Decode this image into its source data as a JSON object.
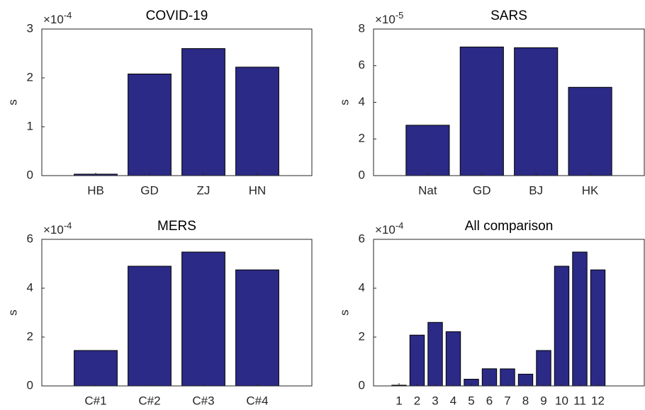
{
  "chart_data": [
    {
      "type": "bar",
      "title": "COVID-19",
      "ylabel": "s",
      "y_exponent": {
        "base": "×10",
        "power": "-4"
      },
      "categories": [
        "HB",
        "GD",
        "ZJ",
        "HN"
      ],
      "values": [
        0.03,
        2.08,
        2.6,
        2.22
      ],
      "color": "#2b2a86",
      "ylim": [
        0,
        3
      ],
      "yticks": [
        0,
        1,
        2,
        3
      ]
    },
    {
      "type": "bar",
      "title": "SARS",
      "ylabel": "s",
      "y_exponent": {
        "base": "×10",
        "power": "-5"
      },
      "categories": [
        "Nat",
        "GD",
        "BJ",
        "HK"
      ],
      "values": [
        2.75,
        7.02,
        6.98,
        4.82
      ],
      "color": "#2b2a86",
      "ylim": [
        0,
        8
      ],
      "yticks": [
        0,
        2,
        4,
        6,
        8
      ]
    },
    {
      "type": "bar",
      "title": "MERS",
      "ylabel": "s",
      "y_exponent": {
        "base": "×10",
        "power": "-4"
      },
      "categories": [
        "C#1",
        "C#2",
        "C#3",
        "C#4"
      ],
      "values": [
        1.45,
        4.9,
        5.48,
        4.75
      ],
      "color": "#2b2a86",
      "ylim": [
        0,
        6
      ],
      "yticks": [
        0,
        2,
        4,
        6
      ]
    },
    {
      "type": "bar",
      "title": "All comparison",
      "ylabel": "s",
      "y_exponent": {
        "base": "×10",
        "power": "-4"
      },
      "categories": [
        "1",
        "2",
        "3",
        "4",
        "5",
        "6",
        "7",
        "8",
        "9",
        "10",
        "11",
        "12"
      ],
      "values": [
        0.03,
        2.08,
        2.6,
        2.22,
        0.275,
        0.702,
        0.698,
        0.482,
        1.45,
        4.9,
        5.48,
        4.75
      ],
      "color": "#2b2a86",
      "ylim": [
        0,
        6
      ],
      "yticks": [
        0,
        2,
        4,
        6
      ]
    }
  ]
}
